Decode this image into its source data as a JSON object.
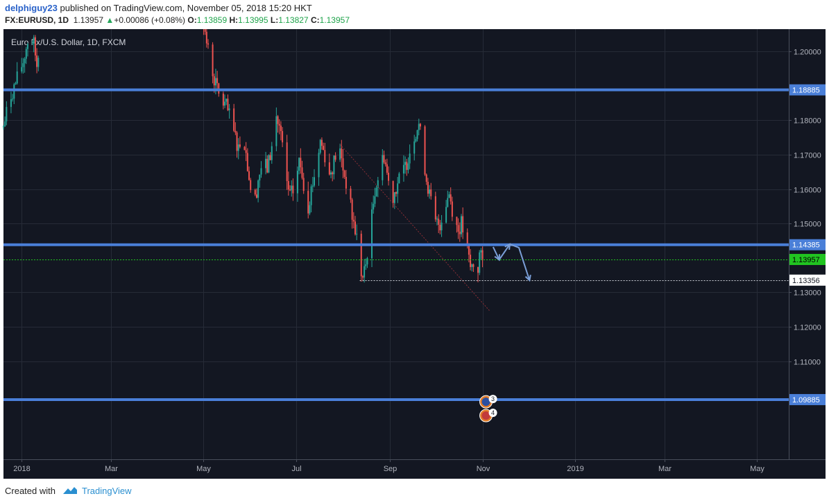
{
  "header": {
    "author": "delphiguy23",
    "published": "published on TradingView.com, November 05, 2018 15:20 HKT",
    "symbol": "FX:EURUSD, 1D",
    "last": "1.13957",
    "change": "+0.00086 (+0.08%)",
    "o_label": "O:",
    "o": "1.13859",
    "h_label": "H:",
    "h": "1.13995",
    "l_label": "L:",
    "l": "1.13827",
    "c_label": "C:",
    "c": "1.13957"
  },
  "footer": {
    "created_with": "Created with",
    "brand": "TradingView"
  },
  "chart_data": {
    "type": "candlestick",
    "title": "Euro Fx/U.S. Dollar, 1D, FXCM",
    "ylim": [
      1.0815,
      1.2065
    ],
    "y_ticks": [
      "1.20000",
      "1.18000",
      "1.17000",
      "1.16000",
      "1.15000",
      "1.13000",
      "1.12000",
      "1.11000"
    ],
    "x_ticks": [
      "2018",
      "Mar",
      "May",
      "Jul",
      "Sep",
      "Nov",
      "2019",
      "Mar",
      "May"
    ],
    "x_tick_days": [
      0,
      59,
      120,
      181,
      243,
      304,
      365,
      424,
      485
    ],
    "x_range_days": [
      -12,
      506
    ],
    "levels": [
      {
        "price": 1.18885,
        "label": "1.18885",
        "color": "#4a7fd8"
      },
      {
        "price": 1.14385,
        "label": "1.14385",
        "color": "#4a7fd8"
      },
      {
        "price": 1.09885,
        "label": "1.09885",
        "color": "#4a7fd8"
      }
    ],
    "last_price": {
      "price": 1.13957,
      "label": "1.13957",
      "color": "#21c421"
    },
    "low_marker": {
      "price": 1.13356,
      "label": "1.13356",
      "from_day": 223
    },
    "trendline": {
      "from": [
        210,
        1.173
      ],
      "to": [
        309,
        1.1245
      ]
    },
    "projection": [
      [
        311,
        1.1432
      ],
      [
        315,
        1.1395
      ],
      [
        322,
        1.144
      ],
      [
        328,
        1.143
      ],
      [
        335,
        1.1335
      ]
    ],
    "price_path": [
      [
        -12,
        1.178
      ],
      [
        -8,
        1.186
      ],
      [
        -3,
        1.192
      ],
      [
        1,
        1.197
      ],
      [
        5,
        1.205
      ],
      [
        8,
        1.202
      ],
      [
        10,
        1.196
      ],
      [
        13,
        1.208
      ],
      [
        120,
        1.209
      ],
      [
        121,
        1.205
      ],
      [
        124,
        1.198
      ],
      [
        127,
        1.192
      ],
      [
        131,
        1.186
      ],
      [
        135,
        1.184
      ],
      [
        139,
        1.178
      ],
      [
        143,
        1.172
      ],
      [
        146,
        1.177
      ],
      [
        149,
        1.167
      ],
      [
        153,
        1.154
      ],
      [
        156,
        1.163
      ],
      [
        159,
        1.168
      ],
      [
        162,
        1.166
      ],
      [
        165,
        1.172
      ],
      [
        168,
        1.181
      ],
      [
        171,
        1.176
      ],
      [
        174,
        1.163
      ],
      [
        177,
        1.158
      ],
      [
        180,
        1.16
      ],
      [
        183,
        1.168
      ],
      [
        185,
        1.165
      ],
      [
        188,
        1.153
      ],
      [
        191,
        1.16
      ],
      [
        194,
        1.166
      ],
      [
        197,
        1.174
      ],
      [
        200,
        1.17
      ],
      [
        203,
        1.164
      ],
      [
        206,
        1.168
      ],
      [
        209,
        1.173
      ],
      [
        212,
        1.166
      ],
      [
        215,
        1.16
      ],
      [
        218,
        1.152
      ],
      [
        221,
        1.146
      ],
      [
        223,
        1.137
      ],
      [
        225,
        1.134
      ],
      [
        227,
        1.138
      ],
      [
        229,
        1.146
      ],
      [
        231,
        1.152
      ],
      [
        233,
        1.16
      ],
      [
        236,
        1.165
      ],
      [
        239,
        1.17
      ],
      [
        242,
        1.162
      ],
      [
        245,
        1.158
      ],
      [
        248,
        1.162
      ],
      [
        251,
        1.164
      ],
      [
        254,
        1.168
      ],
      [
        257,
        1.173
      ],
      [
        260,
        1.177
      ],
      [
        262,
        1.179
      ],
      [
        264,
        1.173
      ],
      [
        267,
        1.163
      ],
      [
        270,
        1.156
      ],
      [
        273,
        1.15
      ],
      [
        276,
        1.15
      ],
      [
        279,
        1.155
      ],
      [
        282,
        1.159
      ],
      [
        285,
        1.152
      ],
      [
        288,
        1.148
      ],
      [
        290,
        1.15
      ],
      [
        292,
        1.146
      ],
      [
        294,
        1.142
      ],
      [
        296,
        1.137
      ],
      [
        298,
        1.138
      ],
      [
        300,
        1.133
      ],
      [
        302,
        1.141
      ],
      [
        304,
        1.139
      ],
      [
        305,
        1.1396
      ]
    ],
    "news_events": [
      {
        "day": 304,
        "price": 1.0982,
        "label": "3"
      },
      {
        "day": 304,
        "price": 1.0942,
        "label": "4"
      }
    ]
  },
  "colors": {
    "background": "#131722",
    "grid": "#262b37",
    "up": "#26a69a",
    "down": "#ef5350",
    "level": "#4a7fd8",
    "last": "#21c421"
  }
}
